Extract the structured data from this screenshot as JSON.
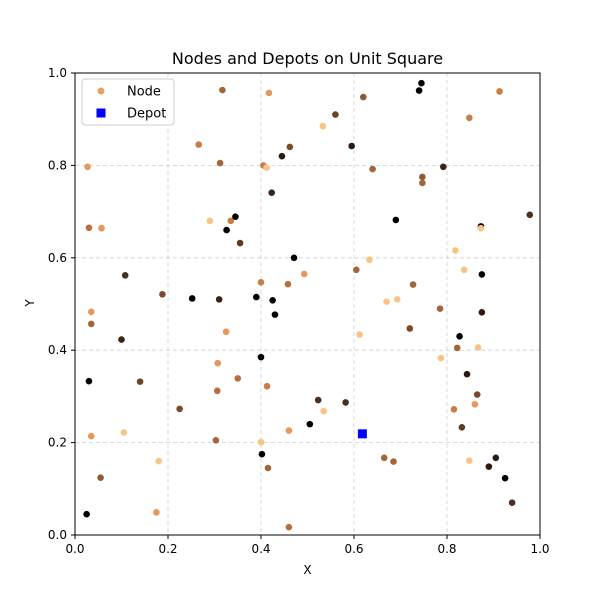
{
  "chart_data": {
    "type": "scatter",
    "title": "Nodes and Depots on Unit Square",
    "xlabel": "X",
    "ylabel": "Y",
    "xlim": [
      0,
      1
    ],
    "ylim": [
      0,
      1
    ],
    "xticks": [
      "0.0",
      "0.2",
      "0.4",
      "0.6",
      "0.8",
      "1.0"
    ],
    "yticks": [
      "0.0",
      "0.2",
      "0.4",
      "0.6",
      "0.8",
      "1.0"
    ],
    "grid": true,
    "legend_position": "top-left",
    "legend": [
      {
        "label": "Node",
        "marker": "circle",
        "color": "#e8a060"
      },
      {
        "label": "Depot",
        "marker": "square",
        "color": "#0000ff"
      }
    ],
    "series": [
      {
        "name": "Node",
        "marker": "circle",
        "points": [
          {
            "x": 0.025,
            "y": 0.045,
            "color": "#000000"
          },
          {
            "x": 0.03,
            "y": 0.333,
            "color": "#000000"
          },
          {
            "x": 0.027,
            "y": 0.797,
            "color": "#e8965a"
          },
          {
            "x": 0.03,
            "y": 0.665,
            "color": "#b86e3e"
          },
          {
            "x": 0.035,
            "y": 0.483,
            "color": "#e8965a"
          },
          {
            "x": 0.035,
            "y": 0.457,
            "color": "#a56637"
          },
          {
            "x": 0.035,
            "y": 0.214,
            "color": "#e8965a"
          },
          {
            "x": 0.055,
            "y": 0.124,
            "color": "#8c5a34"
          },
          {
            "x": 0.057,
            "y": 0.664,
            "color": "#e8965a"
          },
          {
            "x": 0.1,
            "y": 0.423,
            "color": "#3a2418"
          },
          {
            "x": 0.105,
            "y": 0.222,
            "color": "#f6c486"
          },
          {
            "x": 0.108,
            "y": 0.562,
            "color": "#4a3020"
          },
          {
            "x": 0.14,
            "y": 0.332,
            "color": "#6e4428"
          },
          {
            "x": 0.175,
            "y": 0.049,
            "color": "#e8965a"
          },
          {
            "x": 0.18,
            "y": 0.16,
            "color": "#f6c486"
          },
          {
            "x": 0.188,
            "y": 0.521,
            "color": "#7a4a2a"
          },
          {
            "x": 0.225,
            "y": 0.273,
            "color": "#7a4a2a"
          },
          {
            "x": 0.252,
            "y": 0.512,
            "color": "#000000"
          },
          {
            "x": 0.266,
            "y": 0.845,
            "color": "#c87c48"
          },
          {
            "x": 0.29,
            "y": 0.68,
            "color": "#f6c486"
          },
          {
            "x": 0.303,
            "y": 0.205,
            "color": "#a56637"
          },
          {
            "x": 0.306,
            "y": 0.312,
            "color": "#b86e3e"
          },
          {
            "x": 0.307,
            "y": 0.372,
            "color": "#e8965a"
          },
          {
            "x": 0.31,
            "y": 0.51,
            "color": "#3a2418"
          },
          {
            "x": 0.312,
            "y": 0.805,
            "color": "#a56637"
          },
          {
            "x": 0.317,
            "y": 0.963,
            "color": "#a56637"
          },
          {
            "x": 0.325,
            "y": 0.44,
            "color": "#e8965a"
          },
          {
            "x": 0.326,
            "y": 0.66,
            "color": "#000000"
          },
          {
            "x": 0.335,
            "y": 0.68,
            "color": "#c87c48"
          },
          {
            "x": 0.345,
            "y": 0.689,
            "color": "#000000"
          },
          {
            "x": 0.35,
            "y": 0.339,
            "color": "#b86e3e"
          },
          {
            "x": 0.355,
            "y": 0.632,
            "color": "#5e3a22"
          },
          {
            "x": 0.39,
            "y": 0.515,
            "color": "#000000"
          },
          {
            "x": 0.4,
            "y": 0.547,
            "color": "#c87c48"
          },
          {
            "x": 0.4,
            "y": 0.385,
            "color": "#000000"
          },
          {
            "x": 0.4,
            "y": 0.201,
            "color": "#f6c486"
          },
          {
            "x": 0.402,
            "y": 0.175,
            "color": "#000000"
          },
          {
            "x": 0.405,
            "y": 0.8,
            "color": "#c87c48"
          },
          {
            "x": 0.412,
            "y": 0.795,
            "color": "#f6c486"
          },
          {
            "x": 0.413,
            "y": 0.322,
            "color": "#c87c48"
          },
          {
            "x": 0.415,
            "y": 0.145,
            "color": "#a56637"
          },
          {
            "x": 0.417,
            "y": 0.957,
            "color": "#e8965a"
          },
          {
            "x": 0.423,
            "y": 0.741,
            "color": "#3a2418"
          },
          {
            "x": 0.425,
            "y": 0.508,
            "color": "#000000"
          },
          {
            "x": 0.43,
            "y": 0.477,
            "color": "#000000"
          },
          {
            "x": 0.445,
            "y": 0.82,
            "color": "#2a1a10"
          },
          {
            "x": 0.458,
            "y": 0.543,
            "color": "#b86e3e"
          },
          {
            "x": 0.46,
            "y": 0.226,
            "color": "#e8965a"
          },
          {
            "x": 0.46,
            "y": 0.017,
            "color": "#b86e3e"
          },
          {
            "x": 0.462,
            "y": 0.84,
            "color": "#7a4a2a"
          },
          {
            "x": 0.471,
            "y": 0.6,
            "color": "#000000"
          },
          {
            "x": 0.493,
            "y": 0.565,
            "color": "#e8965a"
          },
          {
            "x": 0.505,
            "y": 0.24,
            "color": "#000000"
          },
          {
            "x": 0.523,
            "y": 0.292,
            "color": "#4a3020"
          },
          {
            "x": 0.533,
            "y": 0.885,
            "color": "#f6c486"
          },
          {
            "x": 0.535,
            "y": 0.268,
            "color": "#f6c486"
          },
          {
            "x": 0.56,
            "y": 0.91,
            "color": "#6e4428"
          },
          {
            "x": 0.582,
            "y": 0.287,
            "color": "#4a3020"
          },
          {
            "x": 0.595,
            "y": 0.842,
            "color": "#2a1a10"
          },
          {
            "x": 0.605,
            "y": 0.574,
            "color": "#a56637"
          },
          {
            "x": 0.612,
            "y": 0.434,
            "color": "#f6c486"
          },
          {
            "x": 0.62,
            "y": 0.948,
            "color": "#8c5a34"
          },
          {
            "x": 0.633,
            "y": 0.596,
            "color": "#f6c486"
          },
          {
            "x": 0.64,
            "y": 0.792,
            "color": "#a56637"
          },
          {
            "x": 0.665,
            "y": 0.167,
            "color": "#a56637"
          },
          {
            "x": 0.67,
            "y": 0.505,
            "color": "#f6c486"
          },
          {
            "x": 0.685,
            "y": 0.159,
            "color": "#a56637"
          },
          {
            "x": 0.69,
            "y": 0.682,
            "color": "#000000"
          },
          {
            "x": 0.693,
            "y": 0.51,
            "color": "#f6c486"
          },
          {
            "x": 0.72,
            "y": 0.447,
            "color": "#7a4a2a"
          },
          {
            "x": 0.727,
            "y": 0.542,
            "color": "#a56637"
          },
          {
            "x": 0.74,
            "y": 0.962,
            "color": "#000000"
          },
          {
            "x": 0.745,
            "y": 0.978,
            "color": "#000000"
          },
          {
            "x": 0.747,
            "y": 0.775,
            "color": "#8c5a34"
          },
          {
            "x": 0.747,
            "y": 0.762,
            "color": "#a56637"
          },
          {
            "x": 0.785,
            "y": 0.49,
            "color": "#a56637"
          },
          {
            "x": 0.787,
            "y": 0.383,
            "color": "#f6c486"
          },
          {
            "x": 0.792,
            "y": 0.797,
            "color": "#3a2418"
          },
          {
            "x": 0.815,
            "y": 0.272,
            "color": "#c87c48"
          },
          {
            "x": 0.818,
            "y": 0.616,
            "color": "#f6c486"
          },
          {
            "x": 0.822,
            "y": 0.405,
            "color": "#a56637"
          },
          {
            "x": 0.827,
            "y": 0.43,
            "color": "#000000"
          },
          {
            "x": 0.832,
            "y": 0.233,
            "color": "#5e3a22"
          },
          {
            "x": 0.837,
            "y": 0.574,
            "color": "#f6c486"
          },
          {
            "x": 0.843,
            "y": 0.348,
            "color": "#2a1a10"
          },
          {
            "x": 0.848,
            "y": 0.903,
            "color": "#c87c48"
          },
          {
            "x": 0.848,
            "y": 0.161,
            "color": "#f6c486"
          },
          {
            "x": 0.86,
            "y": 0.283,
            "color": "#e8965a"
          },
          {
            "x": 0.865,
            "y": 0.304,
            "color": "#7a4a2a"
          },
          {
            "x": 0.867,
            "y": 0.406,
            "color": "#f6c486"
          },
          {
            "x": 0.873,
            "y": 0.668,
            "color": "#000000"
          },
          {
            "x": 0.873,
            "y": 0.664,
            "color": "#f6c486"
          },
          {
            "x": 0.875,
            "y": 0.564,
            "color": "#000000"
          },
          {
            "x": 0.875,
            "y": 0.482,
            "color": "#2a1a10"
          },
          {
            "x": 0.89,
            "y": 0.148,
            "color": "#2a1a10"
          },
          {
            "x": 0.905,
            "y": 0.167,
            "color": "#2a1a10"
          },
          {
            "x": 0.913,
            "y": 0.96,
            "color": "#c87c48"
          },
          {
            "x": 0.925,
            "y": 0.123,
            "color": "#000000"
          },
          {
            "x": 0.94,
            "y": 0.07,
            "color": "#4a3020"
          },
          {
            "x": 0.978,
            "y": 0.693,
            "color": "#4a3020"
          }
        ]
      },
      {
        "name": "Depot",
        "marker": "square",
        "points": [
          {
            "x": 0.618,
            "y": 0.219,
            "color": "#0000ff"
          }
        ]
      }
    ]
  }
}
